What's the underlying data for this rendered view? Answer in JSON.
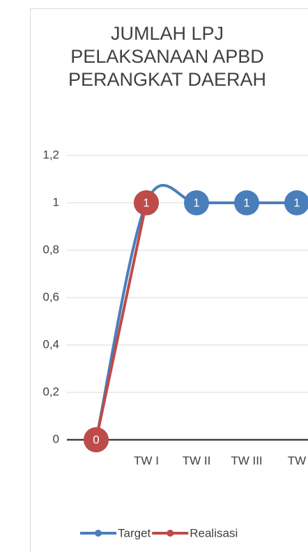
{
  "chart_data": {
    "type": "line",
    "title": "JUMLAH LPJ PELAKSANAAN APBD PERANGKAT DAERAH",
    "categories": [
      null,
      "TW I",
      "TW II",
      "TW III",
      "TW"
    ],
    "series": [
      {
        "name": "Target",
        "color": "#4a7ebb",
        "values": [
          0,
          1,
          1,
          1,
          1
        ]
      },
      {
        "name": "Realisasi",
        "color": "#be4b48",
        "values": [
          0,
          1,
          null,
          null,
          null
        ]
      }
    ],
    "ylim": [
      0,
      1.2
    ],
    "yticks": [
      0,
      {
        "value": 0.2,
        "label": "0,2"
      },
      {
        "value": 0.4,
        "label": "0,4"
      },
      {
        "value": 0.6,
        "label": "0,6"
      },
      {
        "value": 0.8,
        "label": "0,8"
      },
      1,
      {
        "value": 1.2,
        "label": "1,2"
      }
    ],
    "grid": true,
    "legend": "bottom"
  }
}
